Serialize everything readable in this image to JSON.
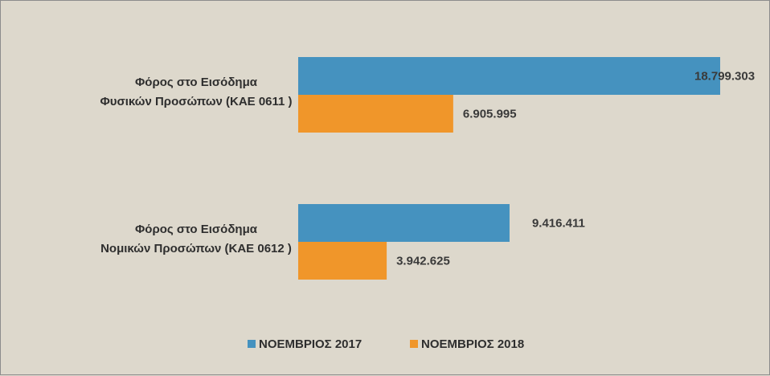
{
  "chart_data": {
    "type": "bar",
    "orientation": "horizontal",
    "categories": [
      [
        "Φόρος στο Εισόδημα",
        "Φυσικών Προσώπων (ΚΑΕ 0611 )"
      ],
      [
        "Φόρος στο Εισόδημα",
        "Νομικών Προσώπων (ΚΑΕ 0612 )"
      ]
    ],
    "series": [
      {
        "name": "ΝΟΕΜΒΡΙΟΣ 2017",
        "color": "#4592bf",
        "values": [
          18799303,
          9416411
        ],
        "labels": [
          "18.799.303",
          "9.416.411"
        ]
      },
      {
        "name": "ΝΟΕΜΒΡΙΟΣ 2018",
        "color": "#f0962a",
        "values": [
          6905995,
          3942625
        ],
        "labels": [
          "6.905.995",
          "3.942.625"
        ]
      }
    ],
    "xlim": [
      0,
      18799303
    ],
    "grid": false,
    "legend_position": "bottom",
    "background": "#ddd8cc"
  }
}
